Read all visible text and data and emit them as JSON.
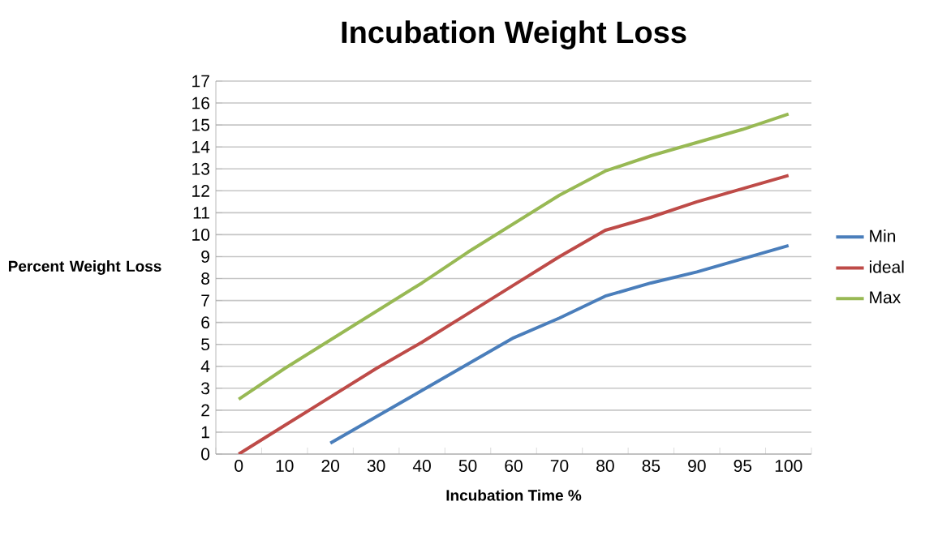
{
  "chart_data": {
    "type": "line",
    "title": "Incubation Weight Loss",
    "xlabel": "Incubation Time %",
    "ylabel": "Percent Weight Loss",
    "categories": [
      "0",
      "10",
      "20",
      "30",
      "40",
      "50",
      "60",
      "70",
      "80",
      "85",
      "90",
      "95",
      "100"
    ],
    "series": [
      {
        "name": "Min",
        "color": "#4a7ebb",
        "values": [
          null,
          null,
          0.5,
          1.7,
          2.9,
          4.1,
          5.3,
          6.2,
          7.2,
          7.8,
          8.3,
          8.9,
          9.5
        ]
      },
      {
        "name": "ideal",
        "color": "#be4b48",
        "values": [
          0,
          1.3,
          2.6,
          3.9,
          5.1,
          6.4,
          7.7,
          9.0,
          10.2,
          10.8,
          11.5,
          12.1,
          12.7
        ]
      },
      {
        "name": "Max",
        "color": "#98b954",
        "values": [
          2.5,
          3.9,
          5.2,
          6.5,
          7.8,
          9.2,
          10.5,
          11.8,
          12.9,
          13.6,
          14.2,
          14.8,
          15.5
        ]
      }
    ],
    "ylim": [
      0,
      17
    ],
    "yticks": [
      0,
      1,
      2,
      3,
      4,
      5,
      6,
      7,
      8,
      9,
      10,
      11,
      12,
      13,
      14,
      15,
      16,
      17
    ],
    "grid": "y",
    "legend": "right",
    "marker": "none",
    "line_style": "solid"
  }
}
